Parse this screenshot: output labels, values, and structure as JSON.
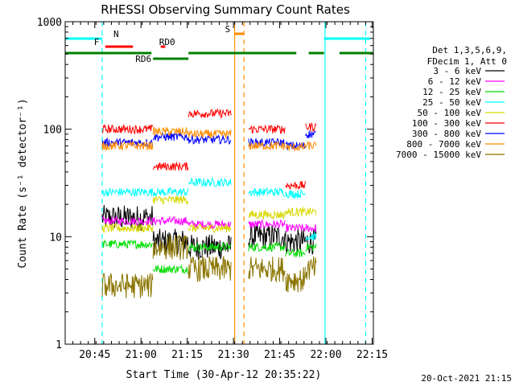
{
  "chart_data": {
    "type": "line",
    "title": "RHESSI Observing Summary Count Rates",
    "xlabel": "Start Time (30-Apr-12 20:35:22)",
    "ylabel": "Count Rate (s⁻¹ detector⁻¹)",
    "x_unit": "minutes since 20:35:22",
    "xlim": [
      0,
      100
    ],
    "x_ticks": [
      {
        "value": 9.6,
        "label": "20:45"
      },
      {
        "value": 24.6,
        "label": "21:00"
      },
      {
        "value": 39.6,
        "label": "21:15"
      },
      {
        "value": 54.6,
        "label": "21:30"
      },
      {
        "value": 69.6,
        "label": "21:45"
      },
      {
        "value": 84.6,
        "label": "22:00"
      },
      {
        "value": 99.6,
        "label": "22:15"
      }
    ],
    "yscale": "log",
    "ylim": [
      1,
      1000
    ],
    "y_ticks": [
      {
        "value": 1,
        "label": "1"
      },
      {
        "value": 10,
        "label": "10"
      },
      {
        "value": 100,
        "label": "100"
      },
      {
        "value": 1000,
        "label": "1000"
      }
    ],
    "legend": {
      "placement": "right",
      "header": [
        "Det 1,3,5,6,9,",
        "FDecim 1, Att 0"
      ],
      "entries": [
        {
          "name": "3 - 6 keV",
          "color": "#000000"
        },
        {
          "name": "6 - 12 keV",
          "color": "#ff00ff"
        },
        {
          "name": "12 - 25 keV",
          "color": "#00dd00"
        },
        {
          "name": "25 - 50 keV",
          "color": "#00ffff"
        },
        {
          "name": "50 - 100 keV",
          "color": "#d8d800"
        },
        {
          "name": "100 - 300 keV",
          "color": "#ff0000"
        },
        {
          "name": "300 - 800 keV",
          "color": "#0000ff"
        },
        {
          "name": "800 - 7000 keV",
          "color": "#ff8c00"
        },
        {
          "name": "7000 - 15000 keV",
          "color": "#8b7500"
        }
      ]
    },
    "segments": [
      [
        12,
        28.5
      ],
      [
        28.5,
        40
      ],
      [
        40,
        54
      ],
      [
        59.5,
        71.5
      ],
      [
        71.5,
        78
      ],
      [
        78,
        81.5
      ]
    ],
    "series": [
      {
        "name": "3 - 6 keV",
        "color": "#000000",
        "values": [
          15,
          9,
          8,
          10,
          9,
          9
        ]
      },
      {
        "name": "6 - 12 keV",
        "color": "#ff00ff",
        "values": [
          14,
          14,
          13,
          13,
          12,
          12
        ]
      },
      {
        "name": "12 - 25 keV",
        "color": "#00dd00",
        "values": [
          8.5,
          5,
          8,
          8,
          7,
          8
        ]
      },
      {
        "name": "25 - 50 keV",
        "color": "#00ffff",
        "values": [
          26,
          26,
          32,
          26,
          25,
          10
        ]
      },
      {
        "name": "50 - 100 keV",
        "color": "#d8d800",
        "values": [
          12,
          22,
          12,
          16,
          17,
          17
        ]
      },
      {
        "name": "100 - 300 keV",
        "color": "#ff0000",
        "values": [
          100,
          45,
          140,
          100,
          30,
          105
        ]
      },
      {
        "name": "300 - 800 keV",
        "color": "#0000ff",
        "values": [
          75,
          85,
          80,
          75,
          70,
          90
        ]
      },
      {
        "name": "800 - 7000 keV",
        "color": "#ff8c00",
        "values": [
          70,
          95,
          90,
          70,
          68,
          70
        ]
      },
      {
        "name": "7000 - 15000 keV",
        "color": "#8b7500",
        "values": [
          3.5,
          8,
          5,
          5,
          4,
          5
        ]
      }
    ],
    "flags": [
      {
        "label": "N",
        "color": "#00ffff",
        "intervals": [
          [
            0,
            12
          ],
          [
            84,
            99
          ]
        ]
      },
      {
        "label": "F",
        "color": "#ff0000",
        "intervals": [
          [
            13,
            22
          ]
        ]
      },
      {
        "label": "RD0",
        "color": "#ff0000",
        "intervals": [
          [
            31,
            32.5
          ]
        ]
      },
      {
        "label": "RD6",
        "color": "#008000",
        "intervals": [
          [
            28.5,
            40
          ]
        ]
      },
      {
        "label": "S",
        "color": "#ff8c00",
        "intervals": [
          [
            55,
            58
          ]
        ]
      }
    ],
    "orbit_bar": {
      "color": "#008000",
      "intervals": [
        [
          0,
          28
        ],
        [
          40,
          75
        ],
        [
          79,
          84
        ],
        [
          89,
          100
        ]
      ]
    },
    "vertical_lines": [
      {
        "x": 12,
        "color": "#00ffff",
        "style": "dashed"
      },
      {
        "x": 84.3,
        "color": "#00ffff",
        "style": "solid"
      },
      {
        "x": 97.5,
        "color": "#00ffff",
        "style": "dashed"
      },
      {
        "x": 55,
        "color": "#ff8c00",
        "style": "solid"
      },
      {
        "x": 58,
        "color": "#ff8c00",
        "style": "dashed"
      }
    ]
  },
  "footer": {
    "timestamp": "20-Oct-2021 21:15"
  }
}
